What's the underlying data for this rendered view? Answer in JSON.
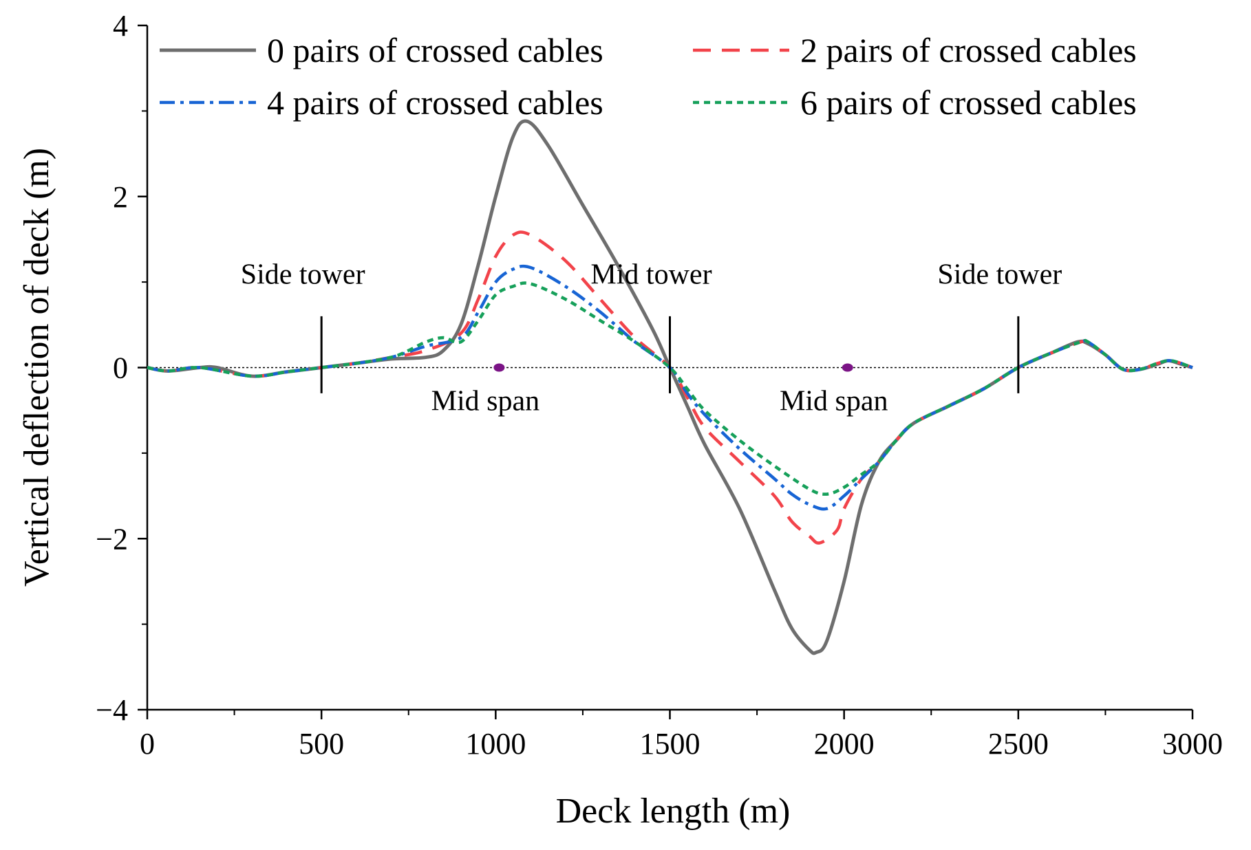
{
  "chart_data": {
    "type": "line",
    "title": "",
    "xlabel": "Deck length (m)",
    "ylabel": "Vertical deflection of deck (m)",
    "xlim": [
      0,
      3000
    ],
    "ylim": [
      -4,
      4
    ],
    "xticks": [
      0,
      500,
      1000,
      1500,
      2000,
      2500,
      3000
    ],
    "yticks": [
      -4,
      -2,
      0,
      2,
      4
    ],
    "xtick_labels": [
      "0",
      "500",
      "1000",
      "1500",
      "2000",
      "2500",
      "3000"
    ],
    "ytick_labels": [
      "−4",
      "−2",
      "0",
      "2",
      "4"
    ],
    "grid": false,
    "legend_position": "top",
    "series": [
      {
        "name": "0 pairs of crossed cables",
        "color": "#6e6e6e",
        "dash": "solid",
        "x": [
          0,
          60,
          150,
          200,
          300,
          400,
          500,
          600,
          700,
          800,
          850,
          900,
          950,
          1000,
          1050,
          1090,
          1150,
          1250,
          1350,
          1450,
          1500,
          1550,
          1600,
          1700,
          1800,
          1850,
          1900,
          1920,
          1950,
          2000,
          2050,
          2100,
          2150,
          2200,
          2300,
          2400,
          2500,
          2600,
          2670,
          2700,
          2750,
          2800,
          2850,
          2900,
          2930,
          2960,
          3000
        ],
        "y": [
          0,
          -0.04,
          0,
          0,
          -0.1,
          -0.05,
          0,
          0.05,
          0.1,
          0.12,
          0.2,
          0.5,
          1.2,
          2.0,
          2.7,
          2.88,
          2.6,
          1.9,
          1.2,
          0.45,
          0,
          -0.45,
          -0.9,
          -1.65,
          -2.6,
          -3.05,
          -3.3,
          -3.33,
          -3.2,
          -2.5,
          -1.6,
          -1.1,
          -0.85,
          -0.65,
          -0.45,
          -0.25,
          0,
          0.18,
          0.3,
          0.28,
          0.15,
          -0.02,
          -0.02,
          0.04,
          0.08,
          0.05,
          0
        ]
      },
      {
        "name": "2 pairs of crossed cables",
        "color": "#f2434a",
        "dash": "dashed",
        "x": [
          0,
          60,
          150,
          300,
          400,
          500,
          600,
          700,
          800,
          900,
          950,
          1000,
          1050,
          1100,
          1200,
          1300,
          1400,
          1500,
          1550,
          1600,
          1700,
          1800,
          1850,
          1900,
          1930,
          1980,
          2000,
          2050,
          2100,
          2150,
          2200,
          2300,
          2400,
          2500,
          2600,
          2680,
          2700,
          2750,
          2800,
          2850,
          2900,
          2940,
          3000
        ],
        "y": [
          0,
          -0.04,
          0,
          -0.1,
          -0.05,
          0,
          0.05,
          0.12,
          0.2,
          0.4,
          0.8,
          1.3,
          1.55,
          1.55,
          1.25,
          0.8,
          0.35,
          0,
          -0.35,
          -0.7,
          -1.1,
          -1.5,
          -1.8,
          -1.97,
          -2.05,
          -1.9,
          -1.65,
          -1.3,
          -1.1,
          -0.85,
          -0.65,
          -0.45,
          -0.25,
          0,
          0.18,
          0.3,
          0.3,
          0.15,
          -0.02,
          -0.02,
          0.05,
          0.08,
          0
        ]
      },
      {
        "name": "4 pairs of crossed cables",
        "color": "#1764d4",
        "dash": "dashdot",
        "x": [
          0,
          60,
          150,
          300,
          400,
          500,
          600,
          700,
          800,
          900,
          950,
          1000,
          1050,
          1100,
          1200,
          1300,
          1400,
          1500,
          1550,
          1600,
          1700,
          1800,
          1850,
          1900,
          1950,
          2000,
          2050,
          2100,
          2150,
          2200,
          2300,
          2400,
          2500,
          2600,
          2680,
          2700,
          2750,
          2800,
          2850,
          2900,
          2940,
          3000
        ],
        "y": [
          0,
          -0.04,
          0,
          -0.1,
          -0.05,
          0,
          0.05,
          0.12,
          0.25,
          0.35,
          0.65,
          1.0,
          1.15,
          1.17,
          0.95,
          0.65,
          0.3,
          0,
          -0.3,
          -0.55,
          -0.95,
          -1.3,
          -1.48,
          -1.6,
          -1.65,
          -1.5,
          -1.3,
          -1.1,
          -0.85,
          -0.65,
          -0.45,
          -0.25,
          0,
          0.18,
          0.3,
          0.3,
          0.15,
          -0.02,
          -0.02,
          0.05,
          0.08,
          0
        ]
      },
      {
        "name": "6 pairs of crossed cables",
        "color": "#16a05a",
        "dash": "dotted",
        "x": [
          0,
          60,
          150,
          300,
          400,
          500,
          600,
          700,
          750,
          800,
          850,
          900,
          950,
          1000,
          1050,
          1100,
          1200,
          1300,
          1400,
          1500,
          1550,
          1600,
          1700,
          1800,
          1900,
          1950,
          2000,
          2050,
          2100,
          2150,
          2200,
          2300,
          2400,
          2500,
          2600,
          2680,
          2700,
          2750,
          2800,
          2850,
          2900,
          2940,
          3000
        ],
        "y": [
          0,
          -0.04,
          0,
          -0.1,
          -0.05,
          0,
          0.05,
          0.12,
          0.2,
          0.3,
          0.35,
          0.3,
          0.55,
          0.85,
          0.95,
          0.98,
          0.8,
          0.55,
          0.3,
          0,
          -0.25,
          -0.5,
          -0.85,
          -1.15,
          -1.42,
          -1.48,
          -1.4,
          -1.25,
          -1.1,
          -0.85,
          -0.65,
          -0.45,
          -0.25,
          0,
          0.18,
          0.3,
          0.3,
          0.15,
          -0.02,
          -0.02,
          0.05,
          0.08,
          0
        ]
      }
    ],
    "annotations": [
      {
        "label": "Side tower",
        "x": 500
      },
      {
        "label": "Mid tower",
        "x": 1500
      },
      {
        "label": "Side tower",
        "x": 2500
      }
    ],
    "markers": [
      {
        "label": "Mid span",
        "x": 1010,
        "y": 0,
        "color": "#7b1486"
      },
      {
        "label": "Mid span",
        "x": 2010,
        "y": 0,
        "color": "#7b1486"
      }
    ]
  }
}
